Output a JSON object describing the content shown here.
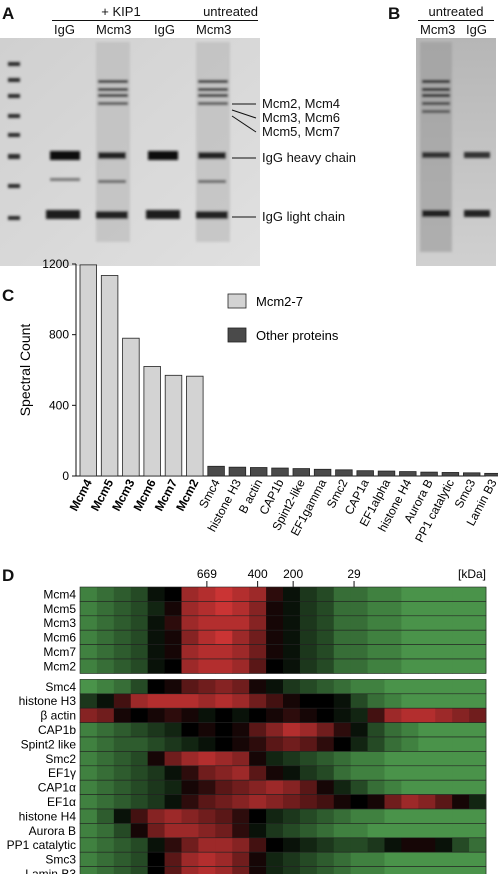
{
  "panel_a": {
    "letter": "A",
    "group_labels": [
      "+ KIP1",
      "untreated"
    ],
    "lane_labels": [
      "IgG",
      "Mcm3",
      "IgG",
      "Mcm3"
    ],
    "band_labels": [
      "Mcm2, Mcm4",
      "Mcm3, Mcm6",
      "Mcm5, Mcm7",
      "IgG heavy chain",
      "IgG light chain"
    ]
  },
  "panel_b": {
    "letter": "B",
    "group_label": "untreated",
    "lane_labels": [
      "Mcm3",
      "IgG"
    ]
  },
  "panel_c": {
    "letter": "C",
    "chart_data": {
      "type": "bar",
      "ylabel": "Spectral Count",
      "ylim": [
        0,
        1200
      ],
      "yticks": [
        0,
        400,
        800,
        1200
      ],
      "categories": [
        "Mcm4",
        "Mcm5",
        "Mcm3",
        "Mcm6",
        "Mcm7",
        "Mcm2",
        "Smc4",
        "histone H3",
        "B actin",
        "CAP1b",
        "Spint2-like",
        "EF1gamma",
        "Smc2",
        "CAP1a",
        "EF1alpha",
        "histone H4",
        "Aurora B",
        "PP1 catalytic",
        "Smc3",
        "Lamin B3"
      ],
      "values": [
        1195,
        1135,
        780,
        620,
        570,
        565,
        55,
        50,
        48,
        45,
        42,
        38,
        35,
        30,
        28,
        25,
        22,
        20,
        18,
        15
      ],
      "groups": [
        "Mcm2-7",
        "Mcm2-7",
        "Mcm2-7",
        "Mcm2-7",
        "Mcm2-7",
        "Mcm2-7",
        "Other proteins",
        "Other proteins",
        "Other proteins",
        "Other proteins",
        "Other proteins",
        "Other proteins",
        "Other proteins",
        "Other proteins",
        "Other proteins",
        "Other proteins",
        "Other proteins",
        "Other proteins",
        "Other proteins",
        "Other proteins"
      ],
      "legend": [
        {
          "name": "Mcm2-7",
          "color": "#d3d3d3"
        },
        {
          "name": "Other proteins",
          "color": "#4a4a4a"
        }
      ],
      "legend_position": "top-right"
    }
  },
  "panel_d": {
    "letter": "D",
    "markers": [
      "669",
      "400",
      "200",
      "29"
    ],
    "unit": "[kDa]",
    "top_rows": [
      "Mcm4",
      "Mcm5",
      "Mcm3",
      "Mcm6",
      "Mcm7",
      "Mcm2"
    ],
    "bottom_rows": [
      "Smc4",
      "histone H3",
      "β actin",
      "CAP1b",
      "Spint2 like",
      "Smc2",
      "EF1γ",
      "CAP1α",
      "EF1α",
      "histone H4",
      "Aurora B",
      "PP1 catalytic",
      "Smc3",
      "Lamin B3"
    ],
    "chart_data": {
      "type": "heatmap",
      "columns": 24,
      "rows": [
        "Mcm4",
        "Mcm5",
        "Mcm3",
        "Mcm6",
        "Mcm7",
        "Mcm2",
        "Smc4",
        "histone H3",
        "β actin",
        "CAP1b",
        "Spint2 like",
        "Smc2",
        "EF1γ",
        "CAP1α",
        "EF1α",
        "histone H4",
        "Aurora B",
        "PP1 catalytic",
        "Smc3",
        "Lamin B3"
      ],
      "color_scale": {
        "low": "#5cb85c",
        "mid": "#000000",
        "high": "#e03a3a"
      },
      "values": [
        [
          0.15,
          0.2,
          0.25,
          0.3,
          0.45,
          0.5,
          0.85,
          0.9,
          0.95,
          0.9,
          0.85,
          0.6,
          0.45,
          0.35,
          0.3,
          0.2,
          0.2,
          0.15,
          0.15,
          0.1,
          0.1,
          0.1,
          0.1,
          0.1
        ],
        [
          0.15,
          0.2,
          0.25,
          0.3,
          0.4,
          0.55,
          0.85,
          0.9,
          0.95,
          0.9,
          0.8,
          0.55,
          0.45,
          0.35,
          0.3,
          0.2,
          0.2,
          0.15,
          0.15,
          0.1,
          0.1,
          0.1,
          0.1,
          0.1
        ],
        [
          0.15,
          0.2,
          0.25,
          0.3,
          0.45,
          0.6,
          0.85,
          0.9,
          0.9,
          0.9,
          0.8,
          0.55,
          0.45,
          0.35,
          0.3,
          0.2,
          0.2,
          0.15,
          0.15,
          0.1,
          0.1,
          0.1,
          0.1,
          0.1
        ],
        [
          0.15,
          0.2,
          0.25,
          0.3,
          0.45,
          0.55,
          0.8,
          0.9,
          0.95,
          0.85,
          0.75,
          0.55,
          0.45,
          0.35,
          0.3,
          0.2,
          0.2,
          0.15,
          0.15,
          0.1,
          0.1,
          0.1,
          0.1,
          0.1
        ],
        [
          0.15,
          0.2,
          0.25,
          0.3,
          0.45,
          0.55,
          0.85,
          0.9,
          0.9,
          0.85,
          0.75,
          0.55,
          0.45,
          0.35,
          0.3,
          0.2,
          0.2,
          0.15,
          0.15,
          0.1,
          0.1,
          0.1,
          0.1,
          0.1
        ],
        [
          0.15,
          0.2,
          0.25,
          0.3,
          0.45,
          0.5,
          0.85,
          0.9,
          0.9,
          0.85,
          0.7,
          0.5,
          0.45,
          0.35,
          0.3,
          0.2,
          0.2,
          0.15,
          0.15,
          0.1,
          0.1,
          0.1,
          0.1,
          0.1
        ],
        [
          0.1,
          0.15,
          0.2,
          0.3,
          0.5,
          0.55,
          0.7,
          0.75,
          0.8,
          0.75,
          0.55,
          0.45,
          0.35,
          0.3,
          0.25,
          0.2,
          0.15,
          0.15,
          0.1,
          0.1,
          0.1,
          0.1,
          0.1,
          0.1
        ],
        [
          0.35,
          0.45,
          0.65,
          0.85,
          0.9,
          0.9,
          0.9,
          0.85,
          0.9,
          0.85,
          0.75,
          0.65,
          0.55,
          0.5,
          0.5,
          0.45,
          0.3,
          0.2,
          0.15,
          0.1,
          0.1,
          0.1,
          0.1,
          0.1
        ],
        [
          0.8,
          0.75,
          0.55,
          0.5,
          0.55,
          0.6,
          0.55,
          0.45,
          0.5,
          0.45,
          0.5,
          0.55,
          0.6,
          0.55,
          0.5,
          0.45,
          0.4,
          0.65,
          0.85,
          0.9,
          0.9,
          0.85,
          0.8,
          0.75
        ],
        [
          0.15,
          0.2,
          0.25,
          0.3,
          0.35,
          0.4,
          0.5,
          0.55,
          0.5,
          0.55,
          0.7,
          0.8,
          0.9,
          0.85,
          0.75,
          0.6,
          0.45,
          0.3,
          0.2,
          0.15,
          0.1,
          0.1,
          0.1,
          0.1
        ],
        [
          0.15,
          0.2,
          0.25,
          0.25,
          0.3,
          0.35,
          0.4,
          0.45,
          0.5,
          0.55,
          0.6,
          0.7,
          0.75,
          0.7,
          0.6,
          0.5,
          0.4,
          0.3,
          0.2,
          0.15,
          0.1,
          0.1,
          0.1,
          0.1
        ],
        [
          0.15,
          0.2,
          0.25,
          0.3,
          0.55,
          0.75,
          0.85,
          0.9,
          0.85,
          0.8,
          0.55,
          0.4,
          0.35,
          0.3,
          0.25,
          0.2,
          0.15,
          0.15,
          0.1,
          0.1,
          0.1,
          0.1,
          0.1,
          0.1
        ],
        [
          0.15,
          0.2,
          0.25,
          0.3,
          0.35,
          0.45,
          0.6,
          0.75,
          0.8,
          0.85,
          0.7,
          0.55,
          0.45,
          0.35,
          0.3,
          0.2,
          0.15,
          0.15,
          0.1,
          0.1,
          0.1,
          0.1,
          0.1,
          0.1
        ],
        [
          0.15,
          0.2,
          0.25,
          0.3,
          0.35,
          0.4,
          0.55,
          0.6,
          0.7,
          0.75,
          0.8,
          0.85,
          0.8,
          0.7,
          0.55,
          0.4,
          0.3,
          0.2,
          0.15,
          0.1,
          0.1,
          0.1,
          0.1,
          0.1
        ],
        [
          0.15,
          0.2,
          0.25,
          0.3,
          0.35,
          0.45,
          0.6,
          0.7,
          0.75,
          0.8,
          0.85,
          0.8,
          0.75,
          0.7,
          0.65,
          0.55,
          0.5,
          0.55,
          0.75,
          0.85,
          0.8,
          0.7,
          0.55,
          0.4
        ],
        [
          0.15,
          0.25,
          0.45,
          0.65,
          0.8,
          0.85,
          0.8,
          0.75,
          0.7,
          0.6,
          0.5,
          0.4,
          0.35,
          0.3,
          0.25,
          0.2,
          0.15,
          0.15,
          0.1,
          0.1,
          0.1,
          0.1,
          0.1,
          0.1
        ],
        [
          0.15,
          0.2,
          0.3,
          0.55,
          0.75,
          0.85,
          0.85,
          0.8,
          0.75,
          0.6,
          0.45,
          0.35,
          0.3,
          0.25,
          0.2,
          0.15,
          0.15,
          0.1,
          0.1,
          0.1,
          0.1,
          0.1,
          0.1,
          0.1
        ],
        [
          0.15,
          0.2,
          0.25,
          0.3,
          0.45,
          0.6,
          0.75,
          0.85,
          0.85,
          0.8,
          0.65,
          0.5,
          0.45,
          0.4,
          0.35,
          0.3,
          0.3,
          0.35,
          0.45,
          0.55,
          0.55,
          0.45,
          0.3,
          0.2
        ],
        [
          0.15,
          0.2,
          0.25,
          0.3,
          0.5,
          0.7,
          0.85,
          0.9,
          0.85,
          0.75,
          0.55,
          0.4,
          0.35,
          0.3,
          0.25,
          0.2,
          0.15,
          0.15,
          0.1,
          0.1,
          0.1,
          0.1,
          0.1,
          0.1
        ],
        [
          0.15,
          0.2,
          0.25,
          0.3,
          0.5,
          0.7,
          0.85,
          0.9,
          0.85,
          0.75,
          0.55,
          0.4,
          0.35,
          0.3,
          0.25,
          0.2,
          0.15,
          0.15,
          0.1,
          0.1,
          0.1,
          0.1,
          0.1,
          0.1
        ]
      ]
    }
  }
}
